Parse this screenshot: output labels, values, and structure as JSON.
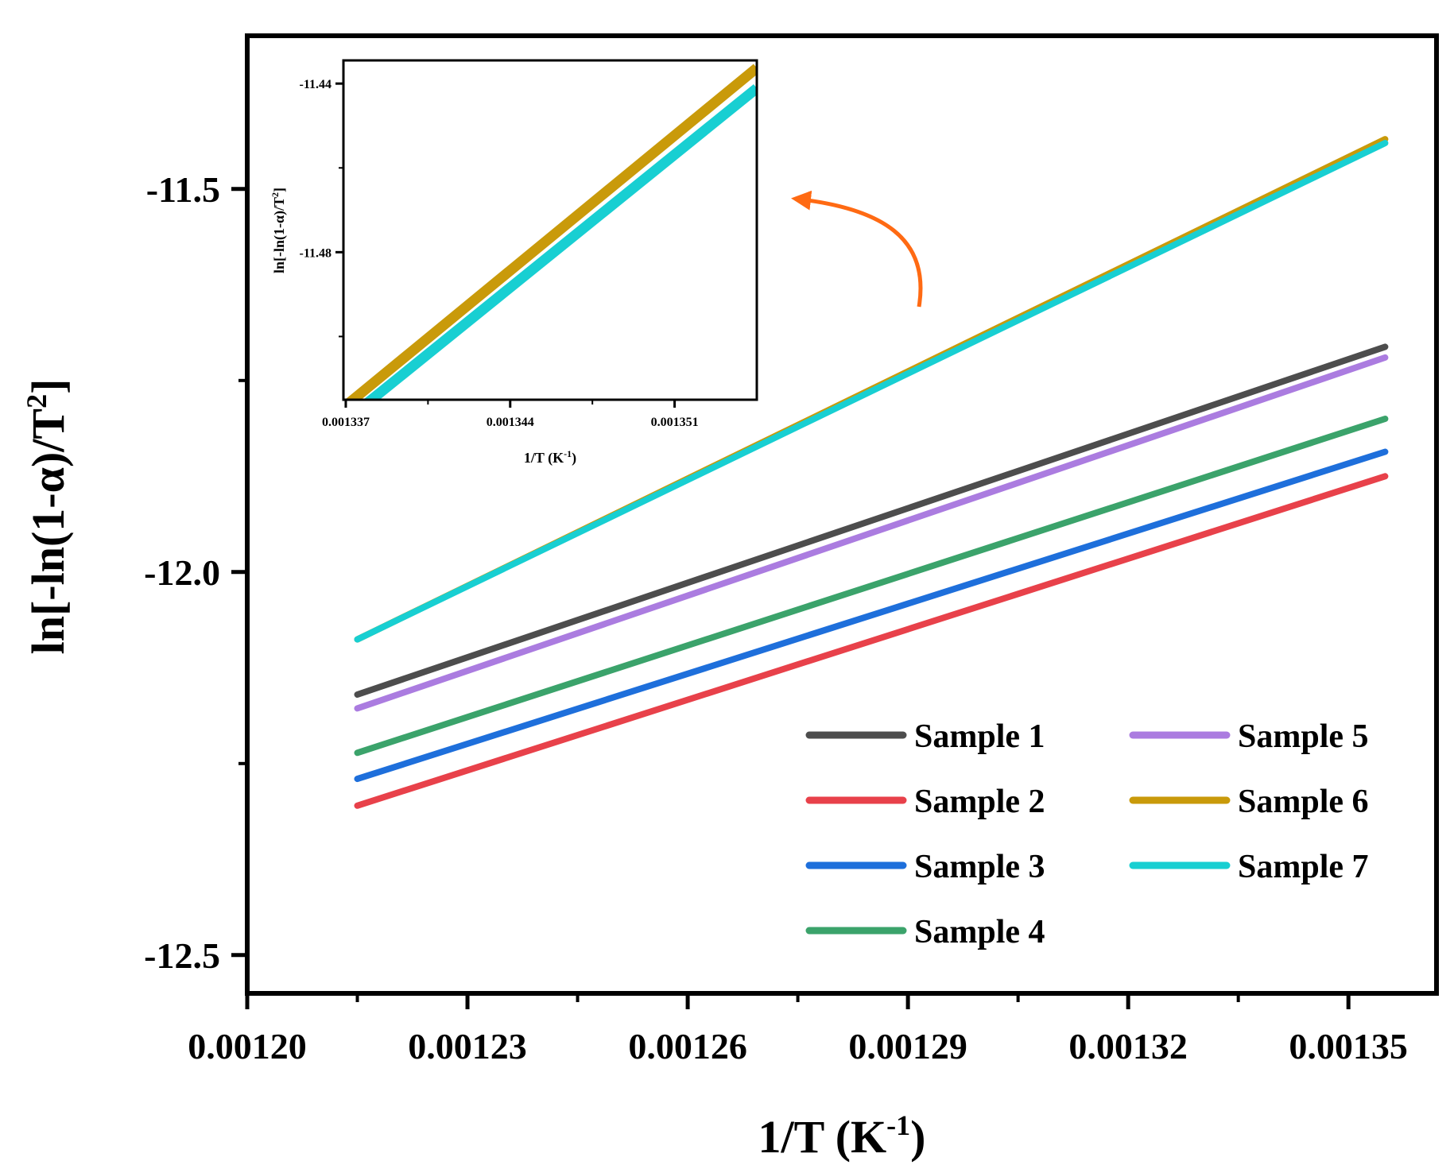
{
  "chart_data": [
    {
      "id": "main",
      "type": "line",
      "xlabel": "1/T (K",
      "xlabel_sup": "-1",
      "xlabel_end": ")",
      "ylabel": "ln[-ln(1-α)/T",
      "ylabel_sup": "2",
      "ylabel_end": "]",
      "xlim": [
        0.0012,
        0.001362
      ],
      "ylim": [
        -12.55,
        -11.3
      ],
      "xticks": [
        0.0012,
        0.00123,
        0.00126,
        0.00129,
        0.00132,
        0.00135
      ],
      "xtick_labels": [
        "0.00120",
        "0.00123",
        "0.00126",
        "0.00129",
        "0.00132",
        "0.00135"
      ],
      "xticks_minor": [
        0.001215,
        0.001245,
        0.001275,
        0.001305,
        0.001335
      ],
      "yticks": [
        -12.5,
        -12.0,
        -11.5
      ],
      "ytick_labels": [
        "-12.5",
        "-12.0",
        "-11.5"
      ],
      "yticks_minor": [
        -12.25,
        -11.75
      ],
      "legend": "bottom-right, 2 columns",
      "series": [
        {
          "name": "Sample 1",
          "color": "#4d4d4d",
          "x": [
            0.001215,
            0.001355
          ],
          "y": [
            -12.16,
            -11.706
          ]
        },
        {
          "name": "Sample 2",
          "color": "#e8414a",
          "x": [
            0.001215,
            0.001355
          ],
          "y": [
            -12.305,
            -11.875
          ]
        },
        {
          "name": "Sample 3",
          "color": "#1e6fdb",
          "x": [
            0.001215,
            0.001355
          ],
          "y": [
            -12.27,
            -11.843
          ]
        },
        {
          "name": "Sample 4",
          "color": "#3ba36b",
          "x": [
            0.001215,
            0.001355
          ],
          "y": [
            -12.236,
            -11.8
          ]
        },
        {
          "name": "Sample 5",
          "color": "#ab7ce0",
          "x": [
            0.001215,
            0.001355
          ],
          "y": [
            -12.178,
            -11.72
          ]
        },
        {
          "name": "Sample 6",
          "color": "#c99a0a",
          "x": [
            0.001215,
            0.001355
          ],
          "y": [
            -12.088,
            -11.435
          ]
        },
        {
          "name": "Sample 7",
          "color": "#18cfd2",
          "x": [
            0.001215,
            0.001355
          ],
          "y": [
            -12.088,
            -11.44
          ]
        }
      ]
    },
    {
      "id": "inset",
      "type": "line",
      "xlabel": "1/T (K",
      "xlabel_sup": "-1",
      "xlabel_end": ")",
      "ylabel": "ln[-ln(1-α)/T",
      "ylabel_sup": "2",
      "ylabel_end": "]",
      "xlim": [
        0.0013369,
        0.0013545
      ],
      "ylim": [
        -11.515,
        -11.4345
      ],
      "xticks": [
        0.001337,
        0.001344,
        0.001351
      ],
      "xtick_labels": [
        "0.001337",
        "0.001344",
        "0.001351"
      ],
      "yticks": [
        -11.48,
        -11.44
      ],
      "ytick_labels": [
        "-11.48",
        "-11.44"
      ],
      "series": [
        {
          "name": "Sample 6",
          "color": "#c99a0a",
          "x": [
            0.001337,
            0.0013545
          ],
          "y": [
            -11.5164,
            -11.4363
          ]
        },
        {
          "name": "Sample 7",
          "color": "#18cfd2",
          "x": [
            0.0013376,
            0.0013545
          ],
          "y": [
            -11.5172,
            -11.4411
          ]
        }
      ]
    }
  ],
  "annotation": {
    "type": "arrow",
    "color": "#ff6a13",
    "description": "points from main plot region to inset"
  }
}
